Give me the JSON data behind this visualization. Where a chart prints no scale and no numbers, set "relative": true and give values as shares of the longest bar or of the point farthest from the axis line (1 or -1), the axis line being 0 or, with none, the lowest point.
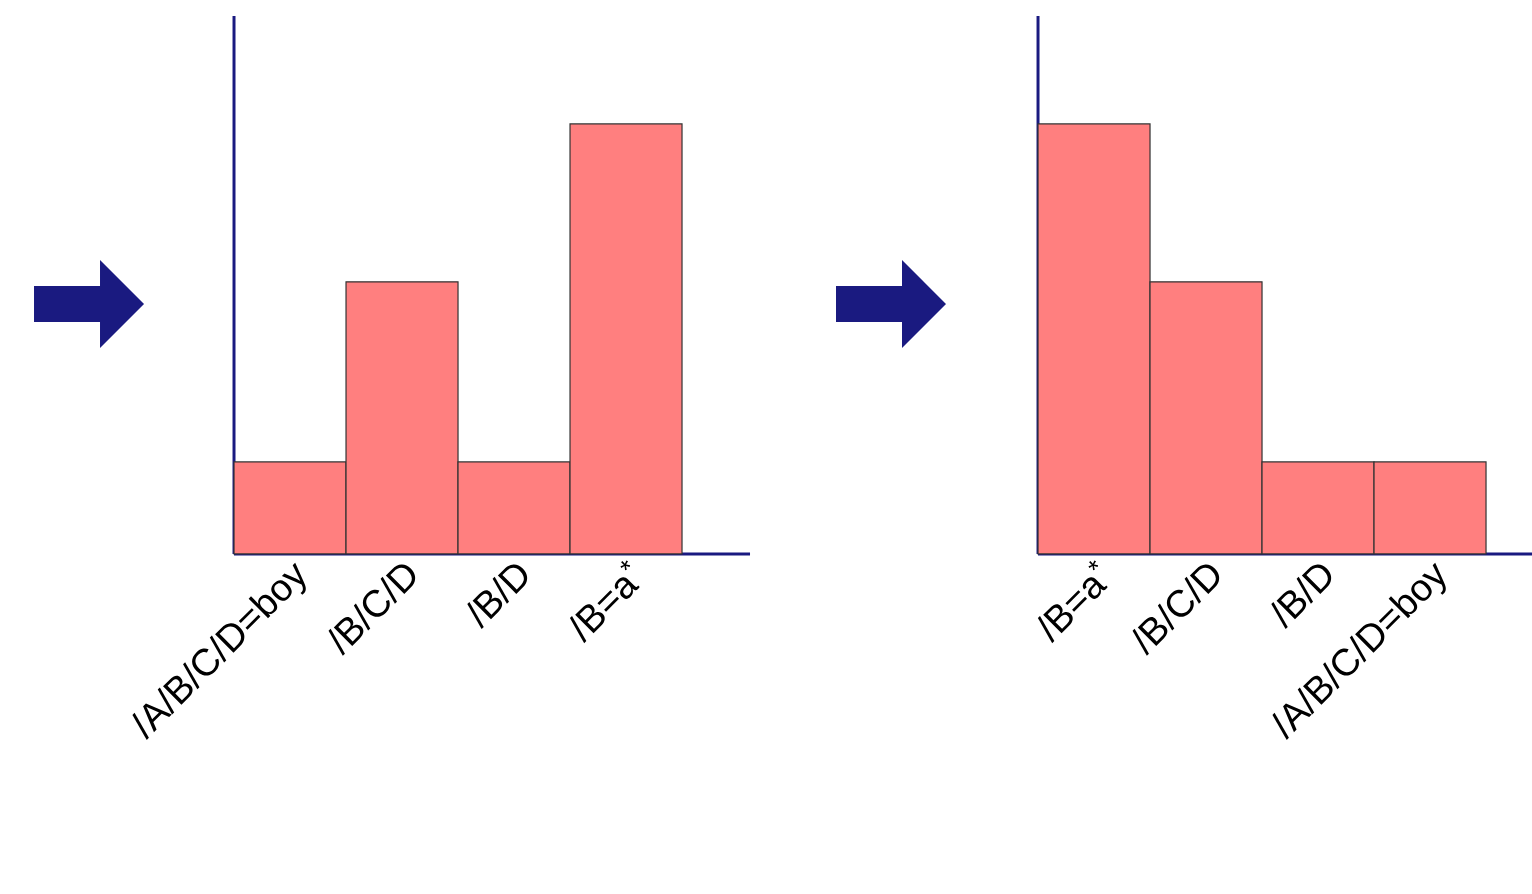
{
  "chart_data": [
    {
      "type": "bar",
      "relative": true,
      "categories": [
        "/A/B/C/D=boy",
        "/B/C/D",
        "/B/D",
        "/B=a$^{*}$"
      ],
      "values": [
        0.214,
        0.633,
        0.214,
        1
      ],
      "color": "#ff7f7f"
    },
    {
      "type": "bar",
      "relative": true,
      "categories": [
        "/B=a$^{*}$",
        "/B/C/D",
        "/B/D",
        "/A/B/C/D=boy"
      ],
      "values": [
        1,
        0.633,
        0.214,
        0.214
      ],
      "color": "#ff7f7f"
    }
  ]
}
